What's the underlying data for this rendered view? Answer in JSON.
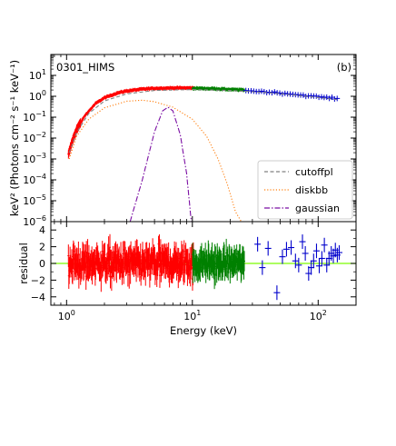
{
  "chart_data": {
    "type": "scatter",
    "annotations": {
      "panel_label": "0301_HIMS",
      "panel_tag": "(b)"
    },
    "xlabel": "Energy (keV)",
    "x_scale": "log",
    "xlim": [
      0.75,
      200
    ],
    "x_ticks": [
      {
        "value": 1,
        "label": "10",
        "exp": "0"
      },
      {
        "value": 10,
        "label": "10",
        "exp": "1"
      },
      {
        "value": 100,
        "label": "10",
        "exp": "2"
      }
    ],
    "top_panel": {
      "ylabel": "keV² (Photons cm⁻² s⁻¹ keV⁻¹)",
      "y_scale": "log",
      "ylim": [
        1e-06,
        100
      ],
      "y_ticks": [
        {
          "value": 1e-06,
          "label": "10",
          "exp": "−6"
        },
        {
          "value": 1e-05,
          "label": "10",
          "exp": "−5"
        },
        {
          "value": 0.0001,
          "label": "10",
          "exp": "−4"
        },
        {
          "value": 0.001,
          "label": "10",
          "exp": "−3"
        },
        {
          "value": 0.01,
          "label": "10",
          "exp": "−2"
        },
        {
          "value": 0.1,
          "label": "10",
          "exp": "−1"
        },
        {
          "value": 1,
          "label": "10",
          "exp": "0"
        },
        {
          "value": 10,
          "label": "10",
          "exp": "1"
        }
      ],
      "model_curves": [
        {
          "name": "cutoffpl",
          "color": "#808080",
          "style": "dashed",
          "points": [
            [
              1.05,
              0.002
            ],
            [
              1.2,
              0.018
            ],
            [
              1.5,
              0.15
            ],
            [
              2,
              0.6
            ],
            [
              3,
              1.3
            ],
            [
              5,
              1.9
            ],
            [
              10,
              2.1
            ],
            [
              20,
              1.9
            ],
            [
              40,
              1.5
            ],
            [
              80,
              1.0
            ],
            [
              140,
              0.7
            ]
          ]
        },
        {
          "name": "diskbb",
          "color": "#ff7f0e",
          "style": "dotted",
          "points": [
            [
              1.05,
              0.001
            ],
            [
              1.2,
              0.012
            ],
            [
              1.5,
              0.08
            ],
            [
              2,
              0.28
            ],
            [
              3,
              0.58
            ],
            [
              4,
              0.65
            ],
            [
              5,
              0.55
            ],
            [
              7,
              0.3
            ],
            [
              10,
              0.08
            ],
            [
              13,
              0.012
            ],
            [
              16,
              0.001
            ],
            [
              19,
              6e-05
            ],
            [
              22,
              3e-06
            ],
            [
              24.5,
              1e-06
            ]
          ]
        },
        {
          "name": "gaussian",
          "color": "#7b0fa3",
          "style": "dashdot",
          "points": [
            [
              3.2,
              1e-06
            ],
            [
              4,
              0.0001
            ],
            [
              5,
              0.02
            ],
            [
              5.8,
              0.2
            ],
            [
              6.4,
              0.3
            ],
            [
              7,
              0.2
            ],
            [
              8,
              0.015
            ],
            [
              9,
              0.0002
            ],
            [
              9.8,
              1e-06
            ]
          ]
        }
      ],
      "data_series": [
        {
          "color": "#ff0000",
          "x_range": [
            1.03,
            10.3
          ],
          "shape": [
            [
              1.03,
              0.0015
            ],
            [
              1.1,
              0.006
            ],
            [
              1.2,
              0.025
            ],
            [
              1.4,
              0.12
            ],
            [
              1.7,
              0.45
            ],
            [
              2,
              0.85
            ],
            [
              2.5,
              1.4
            ],
            [
              3,
              1.8
            ],
            [
              4,
              2.2
            ],
            [
              5,
              2.4
            ],
            [
              7,
              2.5
            ],
            [
              10,
              2.5
            ]
          ]
        },
        {
          "color": "#008000",
          "x_range": [
            10,
            26
          ],
          "shape": [
            [
              10,
              2.4
            ],
            [
              15,
              2.3
            ],
            [
              20,
              2.1
            ],
            [
              26,
              2.0
            ]
          ]
        },
        {
          "color": "#0000cc",
          "x_range": [
            26,
            145
          ],
          "shape": [
            [
              26,
              1.9
            ],
            [
              40,
              1.6
            ],
            [
              60,
              1.3
            ],
            [
              90,
              1.0
            ],
            [
              120,
              0.85
            ],
            [
              145,
              0.75
            ]
          ]
        }
      ]
    },
    "bottom_panel": {
      "ylabel": "residual",
      "ylim": [
        -5,
        5
      ],
      "y_ticks": [
        {
          "value": 4,
          "label": "4"
        },
        {
          "value": 2,
          "label": "2"
        },
        {
          "value": 0,
          "label": "0"
        },
        {
          "value": -2,
          "label": "−2"
        },
        {
          "value": -4,
          "label": "−4"
        }
      ],
      "zero_line_color": "#7cfc00",
      "red_range": [
        1.03,
        10.3
      ],
      "green_range": [
        10,
        26
      ],
      "blue_points": [
        [
          33,
          2.3
        ],
        [
          36,
          -0.5
        ],
        [
          40,
          1.8
        ],
        [
          47,
          -3.5
        ],
        [
          52,
          0.8
        ],
        [
          56,
          1.7
        ],
        [
          61,
          1.9
        ],
        [
          66,
          0.3
        ],
        [
          70,
          -0.2
        ],
        [
          75,
          2.6
        ],
        [
          79,
          1.2
        ],
        [
          84,
          -1.2
        ],
        [
          88,
          -0.5
        ],
        [
          92,
          0.3
        ],
        [
          97,
          1.5
        ],
        [
          102,
          -0.3
        ],
        [
          107,
          0.6
        ],
        [
          112,
          2.2
        ],
        [
          117,
          -0.2
        ],
        [
          122,
          0.6
        ],
        [
          127,
          1.2
        ],
        [
          132,
          0.9
        ],
        [
          137,
          1.6
        ],
        [
          142,
          1.0
        ],
        [
          147,
          1.3
        ]
      ]
    },
    "legend": {
      "position": "lower-right",
      "entries": [
        {
          "label": "cutoffpl",
          "color": "#808080",
          "style": "dashed"
        },
        {
          "label": "diskbb",
          "color": "#ff7f0e",
          "style": "dotted"
        },
        {
          "label": "gaussian",
          "color": "#7b0fa3",
          "style": "dashdot"
        }
      ]
    }
  }
}
